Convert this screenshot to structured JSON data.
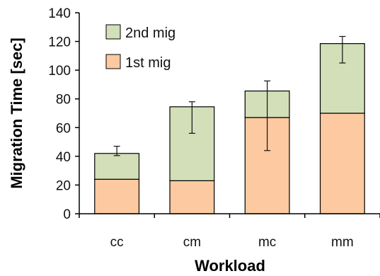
{
  "chart_data": {
    "type": "bar",
    "stacked": true,
    "categories": [
      "cc",
      "cm",
      "mc",
      "mm"
    ],
    "series": [
      {
        "name": "1st mig",
        "values": [
          24,
          23,
          67,
          70
        ],
        "color": "#fcc9a0"
      },
      {
        "name": "2nd mig",
        "values": [
          18,
          51.5,
          18.5,
          48.5
        ],
        "color": "#d2dfb8"
      }
    ],
    "error_bars": {
      "low": [
        40.5,
        56,
        44,
        105
      ],
      "high": [
        47,
        78,
        92.5,
        123.5
      ]
    },
    "xlabel": "Workload",
    "ylabel": "Migration Time [sec]",
    "ylim": [
      0,
      140
    ],
    "yticks": [
      0,
      20,
      40,
      60,
      80,
      100,
      120,
      140
    ],
    "grid": false,
    "legend": "top-left",
    "legend_order": [
      "2nd mig",
      "1st mig"
    ]
  }
}
